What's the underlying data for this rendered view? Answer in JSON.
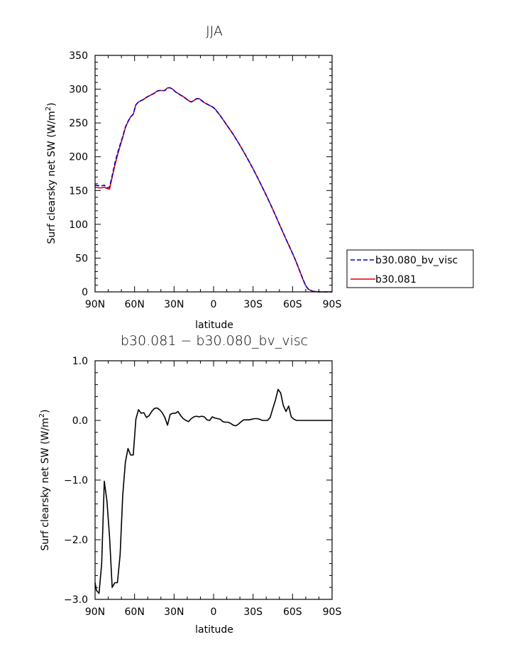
{
  "chart_data": [
    {
      "type": "line",
      "title": "JJA",
      "xlabel": "latitude",
      "ylabel_base": "Surf clearsky net SW (W/m",
      "ylabel_sup": "2",
      "ylabel_close": ")",
      "xlim": [
        90,
        -90
      ],
      "ylim": [
        0,
        350
      ],
      "x_ticks": [
        90,
        60,
        30,
        0,
        -30,
        -60,
        -90
      ],
      "x_tick_labels": [
        "90N",
        "60N",
        "30N",
        "0",
        "30S",
        "60S",
        "90S"
      ],
      "y_ticks": [
        0,
        50,
        100,
        150,
        200,
        250,
        300,
        350
      ],
      "y_tick_labels": [
        "0",
        "50",
        "100",
        "150",
        "200",
        "250",
        "300",
        "350"
      ],
      "legend": "right",
      "series": [
        {
          "name": "b30.080_bv_visc",
          "color": "#0000cc",
          "dash": "dashed",
          "x": [
            90,
            87,
            85,
            83,
            81,
            79,
            77,
            75,
            73,
            71,
            69,
            67,
            65,
            63,
            61,
            59,
            57,
            55,
            53,
            51,
            49,
            47,
            45,
            43,
            41,
            39,
            37,
            35,
            33,
            31,
            29,
            27,
            25,
            23,
            21,
            19,
            17,
            15,
            13,
            11,
            9,
            7,
            5,
            3,
            1,
            -1,
            -5,
            -10,
            -15,
            -20,
            -25,
            -30,
            -35,
            -40,
            -45,
            -50,
            -55,
            -60,
            -62,
            -64,
            -66,
            -68,
            -70,
            -72,
            -75,
            -80,
            -85,
            -90
          ],
          "values": [
            158,
            157,
            157,
            158,
            154,
            155,
            172,
            190,
            205,
            218,
            230,
            244,
            252,
            259,
            263,
            277,
            281,
            283,
            285,
            288,
            290,
            292,
            294,
            297,
            298,
            298,
            298,
            302,
            302,
            300,
            296,
            294,
            291,
            289,
            286,
            283,
            281,
            283,
            286,
            286,
            283,
            280,
            278,
            276,
            274,
            271,
            261,
            247,
            233,
            217,
            200,
            182,
            163,
            143,
            122,
            100,
            78,
            57,
            48,
            38,
            28,
            18,
            9,
            4,
            1,
            0,
            0,
            0
          ]
        },
        {
          "name": "b30.081",
          "color": "#dd0000",
          "dash": "solid",
          "x": [
            90,
            87,
            85,
            83,
            81,
            79,
            77,
            75,
            73,
            71,
            69,
            67,
            65,
            63,
            61,
            59,
            57,
            55,
            53,
            51,
            49,
            47,
            45,
            43,
            41,
            39,
            37,
            35,
            33,
            31,
            29,
            27,
            25,
            23,
            21,
            19,
            17,
            15,
            13,
            11,
            9,
            7,
            5,
            3,
            1,
            -1,
            -5,
            -10,
            -15,
            -20,
            -25,
            -30,
            -35,
            -40,
            -45,
            -50,
            -55,
            -60,
            -62,
            -64,
            -66,
            -68,
            -70,
            -72,
            -75,
            -80,
            -85,
            -90
          ],
          "values": [
            155,
            154,
            154,
            155,
            153,
            152,
            170,
            187,
            202,
            216,
            229,
            243,
            252,
            259,
            263,
            277,
            281,
            283,
            285,
            288,
            290,
            292,
            294,
            297,
            298,
            298,
            298,
            302,
            302,
            300,
            296,
            294,
            291,
            289,
            286,
            283,
            281,
            283,
            286,
            286,
            283,
            280,
            278,
            276,
            274,
            271,
            261,
            247,
            233,
            217,
            200,
            182,
            163,
            143,
            122,
            100,
            78,
            57,
            48,
            38,
            28,
            18,
            9,
            4,
            1,
            0,
            0,
            0
          ]
        }
      ]
    },
    {
      "type": "line",
      "title": "b30.081 − b30.080_bv_visc",
      "xlabel": "latitude",
      "ylabel_base": "Surf clearsky net SW (W/m",
      "ylabel_sup": "2",
      "ylabel_close": ")",
      "xlim": [
        90,
        -90
      ],
      "ylim": [
        -3,
        1
      ],
      "x_ticks": [
        90,
        60,
        30,
        0,
        -30,
        -60,
        -90
      ],
      "x_tick_labels": [
        "90N",
        "60N",
        "30N",
        "0",
        "30S",
        "60S",
        "90S"
      ],
      "y_ticks": [
        -3,
        -2,
        -1,
        0,
        1
      ],
      "y_tick_labels": [
        "−3.0",
        "−2.0",
        "−1.0",
        "0.0",
        "1.0"
      ],
      "series": [
        {
          "color": "#000000",
          "dash": "solid",
          "x": [
            90,
            89,
            87,
            85,
            83,
            81,
            79,
            77,
            75,
            73,
            71,
            69,
            67,
            65,
            63,
            61,
            59,
            57,
            55,
            53,
            51,
            49,
            47,
            45,
            43,
            41,
            39,
            37,
            35,
            33,
            31,
            29,
            27,
            25,
            23,
            21,
            19,
            17,
            15,
            13,
            11,
            9,
            7,
            5,
            3,
            1,
            -1,
            -3,
            -5,
            -7,
            -9,
            -11,
            -13,
            -15,
            -17,
            -19,
            -21,
            -23,
            -25,
            -27,
            -29,
            -31,
            -33,
            -35,
            -37,
            -39,
            -41,
            -43,
            -45,
            -47,
            -49,
            -51,
            -53,
            -55,
            -57,
            -59,
            -61,
            -63,
            -65,
            -67,
            -69,
            -71,
            -73,
            -75,
            -80,
            -85,
            -90
          ],
          "values": [
            -2.72,
            -2.85,
            -2.9,
            -2.4,
            -1.02,
            -1.35,
            -1.95,
            -2.8,
            -2.72,
            -2.72,
            -2.25,
            -1.25,
            -0.7,
            -0.47,
            -0.58,
            -0.58,
            0.02,
            0.18,
            0.12,
            0.13,
            0.05,
            0.08,
            0.15,
            0.2,
            0.21,
            0.18,
            0.13,
            0.05,
            -0.08,
            0.1,
            0.12,
            0.12,
            0.15,
            0.08,
            0.03,
            0.0,
            -0.02,
            0.03,
            0.06,
            0.07,
            0.06,
            0.07,
            0.06,
            0.01,
            0.0,
            0.06,
            0.04,
            0.03,
            0.02,
            -0.02,
            -0.03,
            -0.03,
            -0.05,
            -0.08,
            -0.09,
            -0.06,
            -0.02,
            0.01,
            0.01,
            0.01,
            0.02,
            0.03,
            0.03,
            0.02,
            0.0,
            0.0,
            0.0,
            0.05,
            0.2,
            0.34,
            0.52,
            0.46,
            0.25,
            0.15,
            0.24,
            0.06,
            0.02,
            0.0,
            0.0,
            0.0,
            0.0,
            0.0,
            0.0,
            0.0,
            0.0,
            0.0,
            0.0
          ]
        }
      ]
    }
  ]
}
